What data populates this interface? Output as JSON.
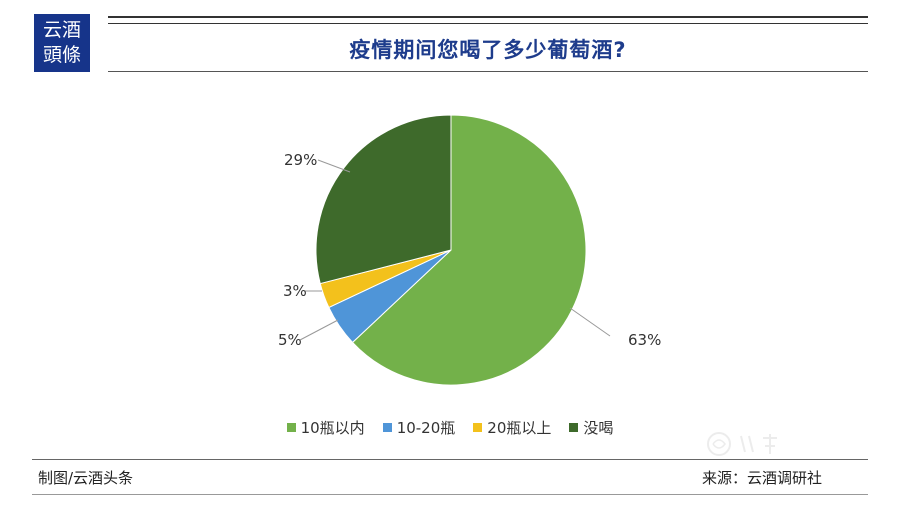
{
  "logo": {
    "line1": "云酒",
    "line2": "頭條"
  },
  "colors": {
    "brand": "#16348a",
    "title": "#1e3c8c"
  },
  "chart_data": {
    "type": "pie",
    "title": "疫情期间您喝了多少葡萄酒?",
    "categories": [
      "10瓶以内",
      "10-20瓶",
      "20瓶以上",
      "没喝"
    ],
    "values": [
      63,
      5,
      3,
      29
    ],
    "labels": [
      "63%",
      "5%",
      "3%",
      "29%"
    ],
    "colors": [
      "#73b14a",
      "#4f95d8",
      "#f3c11c",
      "#3e6a2b"
    ],
    "legend_position": "bottom"
  },
  "footer": {
    "credit": "制图/云酒头条",
    "source": "来源：云酒调研社"
  }
}
